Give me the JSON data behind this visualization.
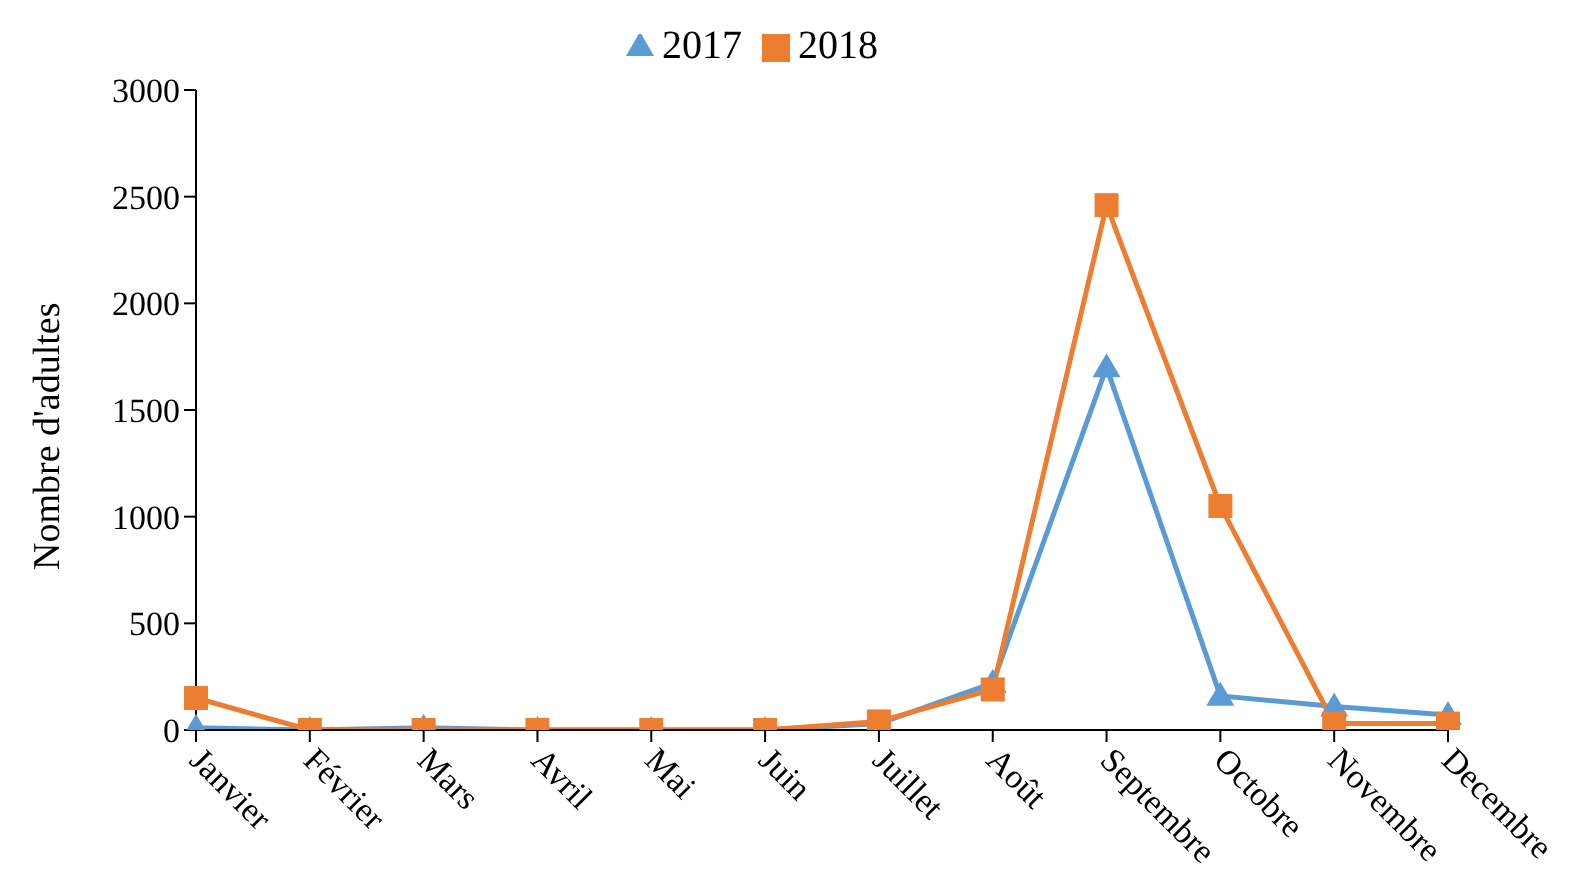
{
  "chart_data": {
    "type": "line",
    "ylabel": "Nombre d'adultes",
    "categories": [
      "Janvier",
      "Février",
      "Mars",
      "Avril",
      "Mai",
      "Juin",
      "Juillet",
      "Août",
      "Septembre",
      "Octobre",
      "Novembre",
      "Decembre"
    ],
    "series": [
      {
        "name": "2017",
        "color": "#5b9bd5",
        "marker": "triangle",
        "values": [
          10,
          0,
          10,
          0,
          0,
          0,
          30,
          220,
          1700,
          160,
          110,
          70
        ]
      },
      {
        "name": "2018",
        "color": "#ed7d31",
        "marker": "square",
        "values": [
          150,
          0,
          0,
          0,
          0,
          0,
          40,
          190,
          2460,
          1050,
          30,
          30
        ]
      }
    ],
    "ylim": [
      0,
      3000
    ],
    "yticks": [
      0,
      500,
      1000,
      1500,
      2000,
      2500,
      3000
    ],
    "grid": false,
    "legend": "top"
  }
}
